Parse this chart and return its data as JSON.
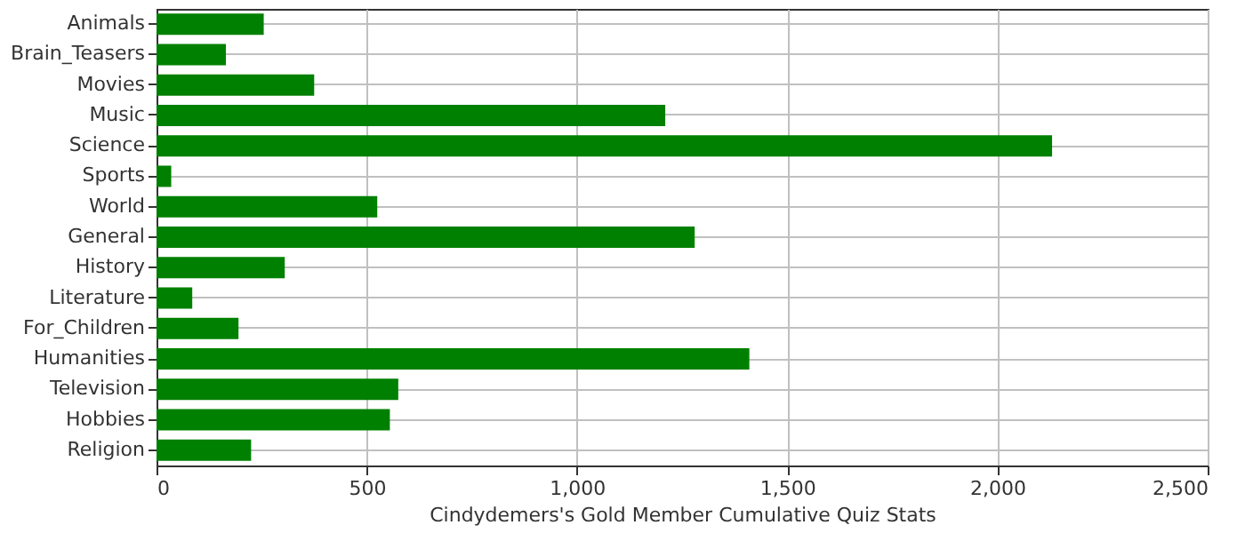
{
  "chart_data": {
    "type": "bar",
    "orientation": "horizontal",
    "xlabel": "Cindydemers's Gold Member Cumulative Quiz Stats",
    "categories": [
      "Animals",
      "Brain_Teasers",
      "Movies",
      "Music",
      "Science",
      "Sports",
      "World",
      "General",
      "History",
      "Literature",
      "For_Children",
      "Humanities",
      "Television",
      "Hobbies",
      "Religion"
    ],
    "values": [
      255,
      165,
      375,
      1210,
      2130,
      35,
      525,
      1280,
      305,
      85,
      195,
      1410,
      575,
      555,
      225
    ],
    "color": "#008000",
    "xlim": [
      0,
      2500
    ],
    "xticks": [
      0,
      500,
      {
        "value": 1000,
        "label": "1,000"
      },
      {
        "value": 1500,
        "label": "1,500"
      },
      {
        "value": 2000,
        "label": "2,000"
      },
      {
        "value": 2500,
        "label": "2,500"
      }
    ],
    "grid": true
  }
}
